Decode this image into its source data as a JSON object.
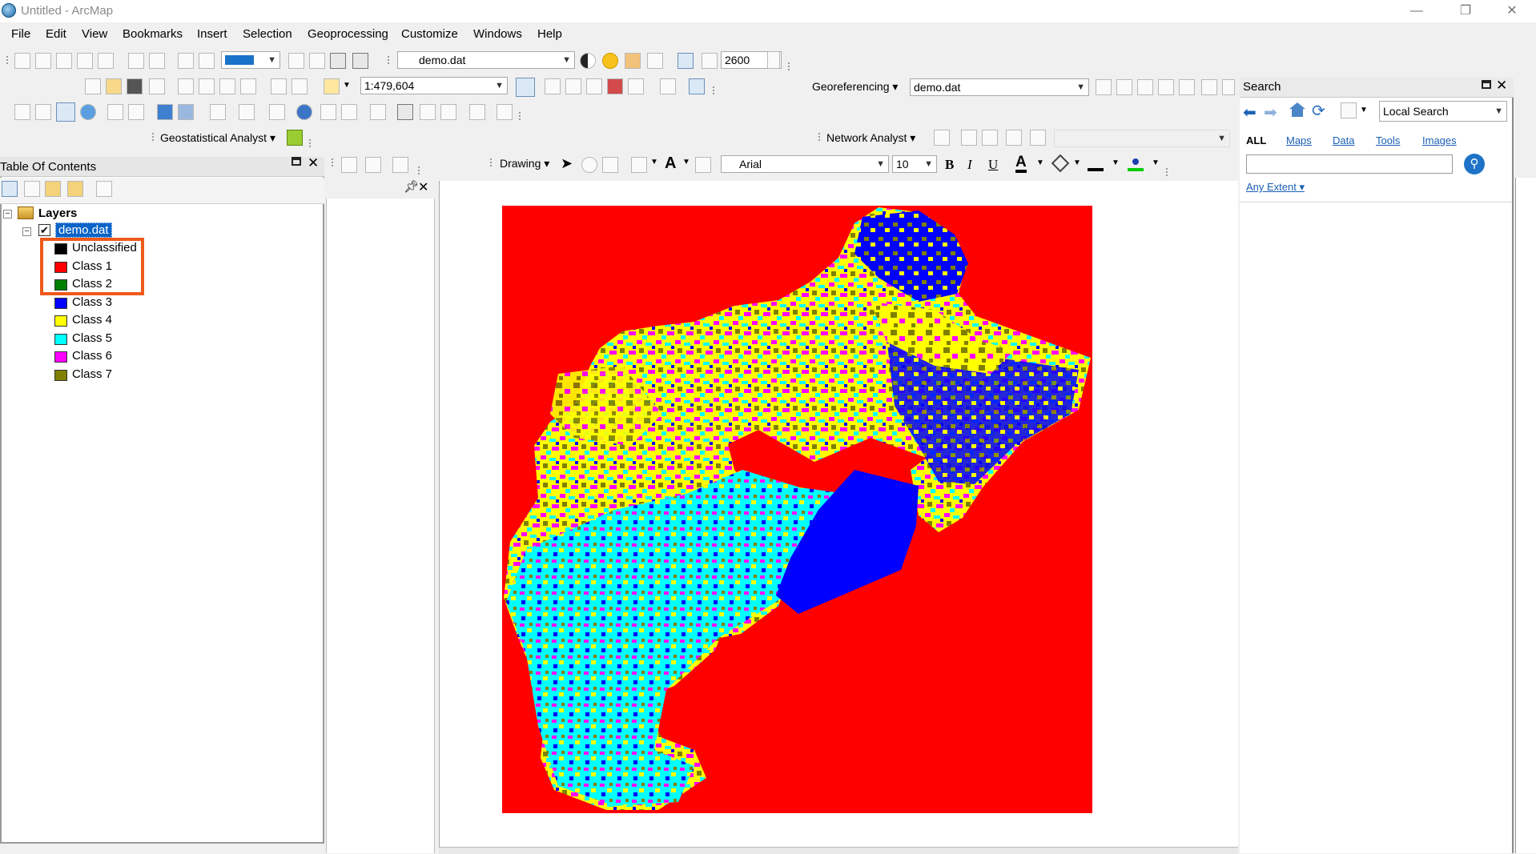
{
  "window": {
    "title": "Untitled - ArcMap",
    "minimize": "—",
    "restore": "❐",
    "close": "✕"
  },
  "menu": [
    "File",
    "Edit",
    "View",
    "Bookmarks",
    "Insert",
    "Selection",
    "Geoprocessing",
    "Customize",
    "Windows",
    "Help"
  ],
  "toolbar": {
    "layer_combo": "demo.dat",
    "effects_value": "2600",
    "scale": "1:479,604",
    "georeferencing_label": "Georeferencing",
    "georef_layer": "demo.dat",
    "geostat_label": "Geostatistical Analyst",
    "network_label": "Network Analyst",
    "drawing_label": "Drawing",
    "font_name": "Arial",
    "font_size": "10",
    "bold": "B",
    "italic": "I",
    "underline": "U",
    "font_color_glyph": "A"
  },
  "toc": {
    "title": "Table Of Contents",
    "root": "Layers",
    "layer": "demo.dat",
    "classes": [
      {
        "label": "Unclassified",
        "color": "#000000"
      },
      {
        "label": "Class 1",
        "color": "#ff0000"
      },
      {
        "label": "Class 2",
        "color": "#008000"
      },
      {
        "label": "Class 3",
        "color": "#0000ff"
      },
      {
        "label": "Class 4",
        "color": "#ffff00"
      },
      {
        "label": "Class 5",
        "color": "#00ffff"
      },
      {
        "label": "Class 6",
        "color": "#ff00ff"
      },
      {
        "label": "Class 7",
        "color": "#808000"
      }
    ]
  },
  "search": {
    "title": "Search",
    "scope": "Local Search",
    "filters": [
      "ALL",
      "Maps",
      "Data",
      "Tools",
      "Images"
    ],
    "query": "",
    "extent": "Any Extent"
  },
  "icons": [
    "app-icon",
    "pin-icon",
    "close-icon",
    "search-icon",
    "back-icon",
    "forward-icon",
    "home-icon",
    "refresh-icon",
    "add-data-icon"
  ]
}
